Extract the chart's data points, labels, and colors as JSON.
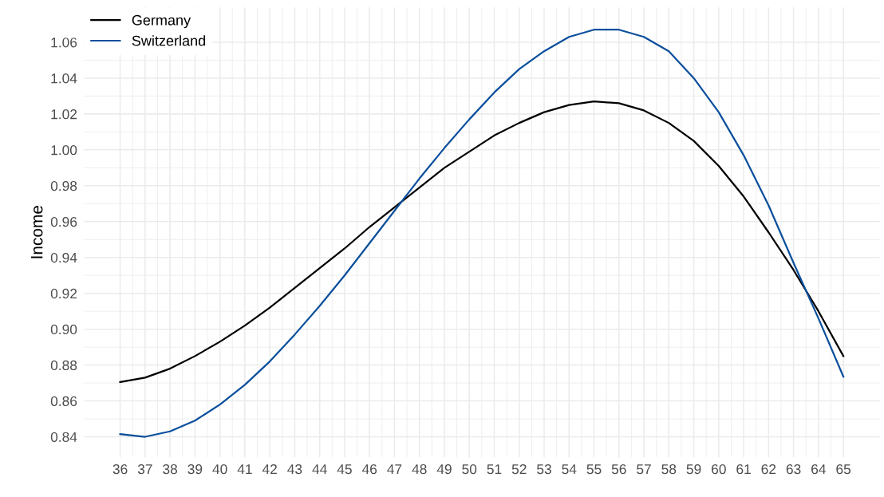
{
  "chart_data": {
    "type": "line",
    "ylabel": "Income",
    "x": [
      36,
      37,
      38,
      39,
      40,
      41,
      42,
      43,
      44,
      45,
      46,
      47,
      48,
      49,
      50,
      51,
      52,
      53,
      54,
      55,
      56,
      57,
      58,
      59,
      60,
      61,
      62,
      63,
      64,
      65
    ],
    "series": [
      {
        "name": "Germany",
        "color": "#000000",
        "values": [
          0.8705,
          0.873,
          0.878,
          0.885,
          0.893,
          0.902,
          0.912,
          0.923,
          0.934,
          0.945,
          0.957,
          0.968,
          0.979,
          0.99,
          0.999,
          1.008,
          1.015,
          1.021,
          1.025,
          1.027,
          1.026,
          1.022,
          1.015,
          1.005,
          0.991,
          0.974,
          0.954,
          0.933,
          0.91,
          0.885
        ]
      },
      {
        "name": "Switzerland",
        "color": "#0b4f9c",
        "values": [
          0.8415,
          0.84,
          0.843,
          0.849,
          0.858,
          0.869,
          0.882,
          0.897,
          0.913,
          0.93,
          0.948,
          0.966,
          0.984,
          1.001,
          1.017,
          1.032,
          1.045,
          1.055,
          1.063,
          1.067,
          1.067,
          1.063,
          1.055,
          1.04,
          1.021,
          0.997,
          0.969,
          0.937,
          0.906,
          0.8735
        ]
      }
    ],
    "xlim": [
      34.55,
      66.45
    ],
    "xticks": [
      36,
      37,
      38,
      39,
      40,
      41,
      42,
      43,
      44,
      45,
      46,
      47,
      48,
      49,
      50,
      51,
      52,
      53,
      54,
      55,
      56,
      57,
      58,
      59,
      60,
      61,
      62,
      63,
      64,
      65
    ],
    "ylim": [
      0.8286,
      1.0794
    ],
    "yticks": [
      0.84,
      0.86,
      0.88,
      {
        "value": 0.9,
        "label": "0.90"
      },
      0.92,
      0.94,
      0.96,
      0.98,
      {
        "value": 1,
        "label": "1.00"
      },
      1.02,
      1.04,
      1.06
    ],
    "grid": true,
    "legend": "top left",
    "line_style": "solid",
    "marker": "none"
  }
}
